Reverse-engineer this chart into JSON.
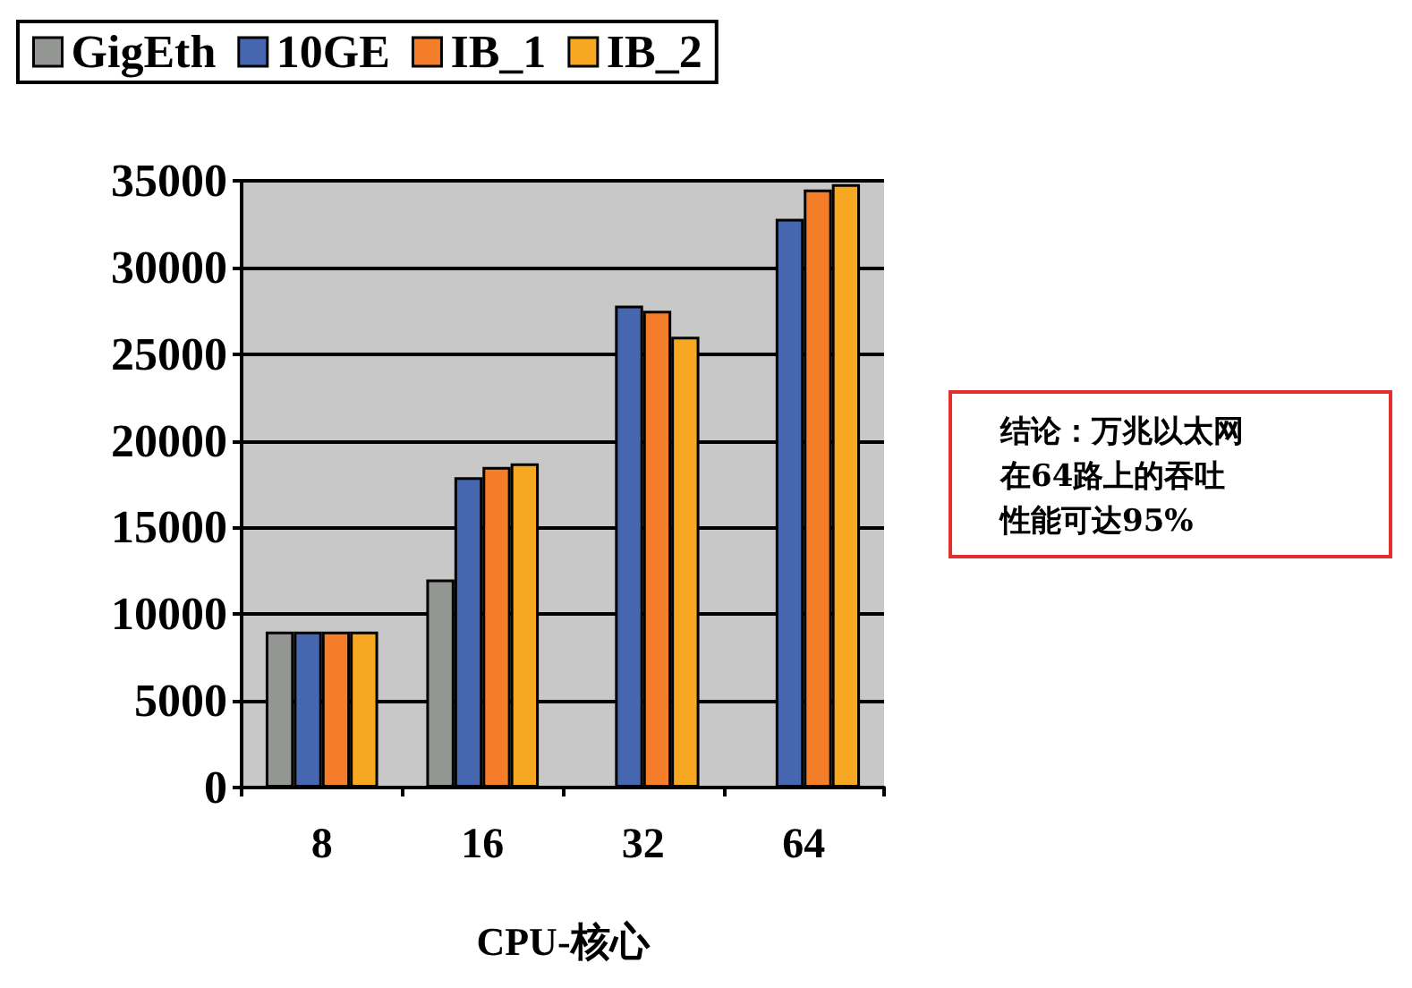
{
  "chart_data": {
    "type": "bar",
    "xlabel": "CPU-核心",
    "categories": [
      "8",
      "16",
      "32",
      "64"
    ],
    "series": [
      {
        "name": "GigEth",
        "color": "#939693",
        "values": [
          9000,
          12000,
          0,
          0
        ]
      },
      {
        "name": "10GE",
        "color": "#4766b0",
        "values": [
          9000,
          17900,
          27800,
          32800
        ]
      },
      {
        "name": "IB_1",
        "color": "#f47d2a",
        "values": [
          9000,
          18500,
          27500,
          34500
        ]
      },
      {
        "name": "IB_2",
        "color": "#f8a722",
        "values": [
          9000,
          18700,
          26000,
          34800
        ]
      }
    ],
    "ylim": [
      0,
      35000
    ],
    "yticks": [
      0,
      5000,
      10000,
      15000,
      20000,
      25000,
      30000,
      35000
    ],
    "grid": "y",
    "legend": "top left",
    "annotations": [
      "结论：万兆以太网在64路上的吞吐性能可达95%"
    ]
  }
}
